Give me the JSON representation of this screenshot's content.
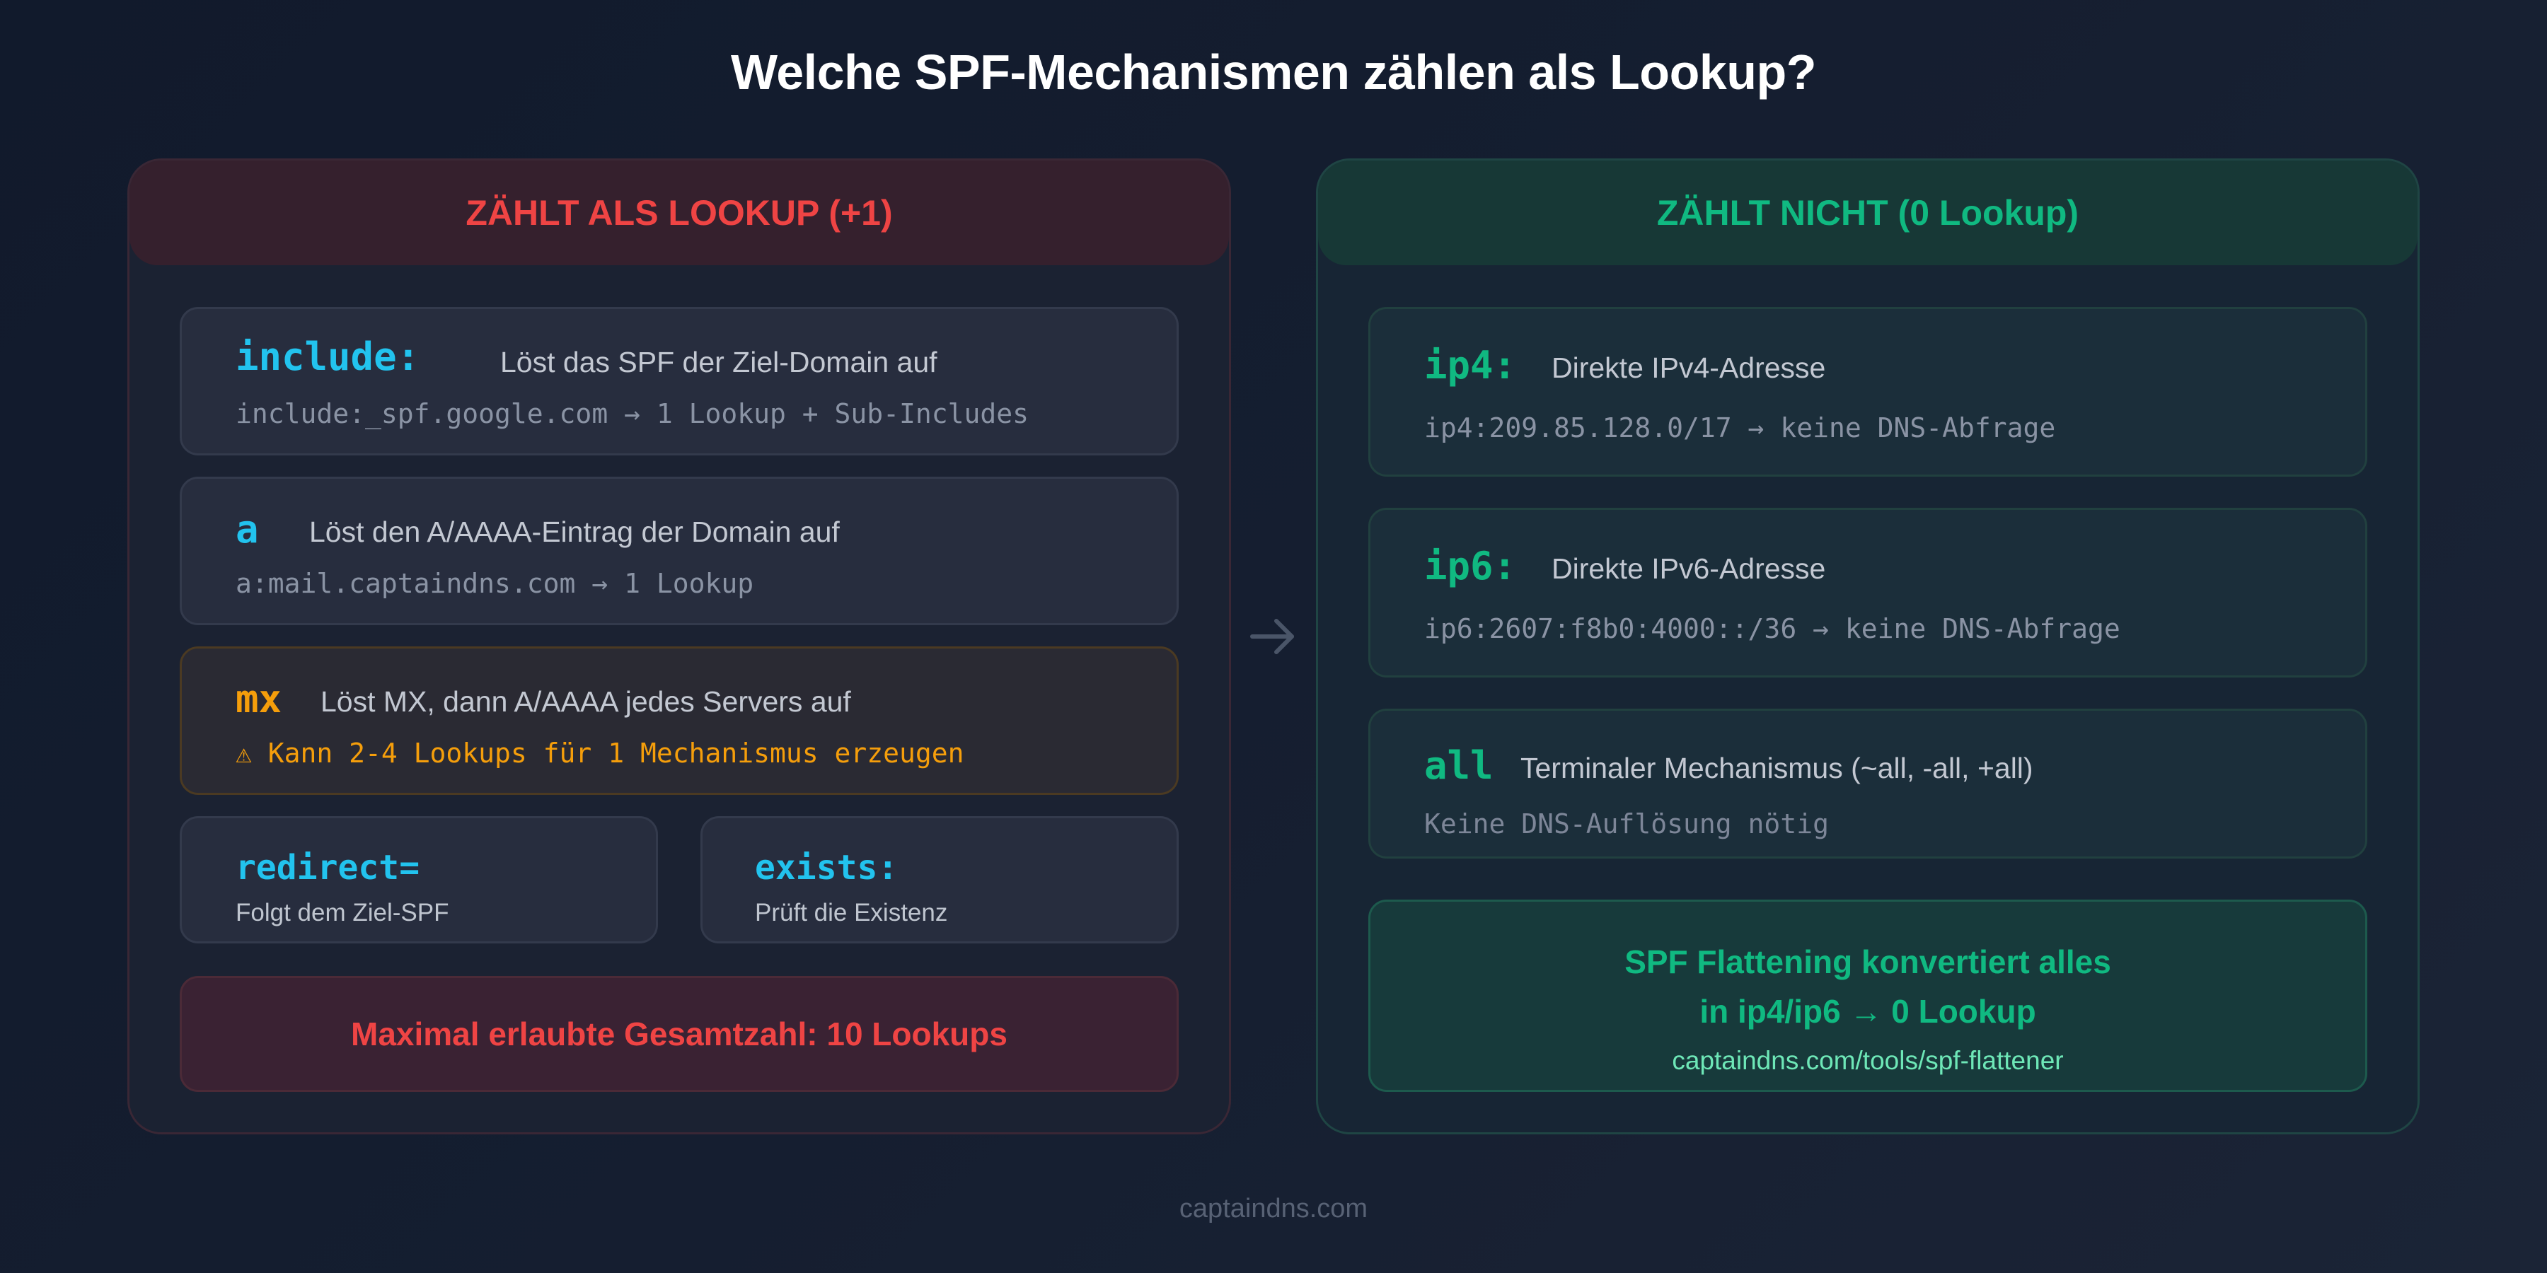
{
  "title": "Welche SPF-Mechanismen zählen als Lookup?",
  "left_panel": {
    "header": "ZÄHLT ALS LOOKUP (+1)",
    "cards": [
      {
        "keyword": "include:",
        "description": "Löst das SPF der Ziel-Domain auf",
        "example": "include:_spf.google.com → 1 Lookup + Sub-Includes"
      },
      {
        "keyword": "a",
        "description": "Löst den A/AAAA-Eintrag der Domain auf",
        "example": "a:mail.captaindns.com → 1 Lookup"
      },
      {
        "keyword": "mx",
        "description": "Löst MX, dann A/AAAA jedes Servers auf",
        "example": "⚠ Kann 2-4 Lookups für 1 Mechanismus erzeugen"
      }
    ],
    "small_cards": [
      {
        "keyword": "redirect=",
        "description": "Folgt dem Ziel-SPF"
      },
      {
        "keyword": "exists:",
        "description": "Prüft die Existenz"
      }
    ],
    "total": "Maximal erlaubte Gesamtzahl: 10 Lookups"
  },
  "right_panel": {
    "header": "ZÄHLT NICHT (0 Lookup)",
    "cards": [
      {
        "keyword": "ip4:",
        "description": "Direkte IPv4-Adresse",
        "example": "ip4:209.85.128.0/17 → keine DNS-Abfrage"
      },
      {
        "keyword": "ip6:",
        "description": "Direkte IPv6-Adresse",
        "example": "ip6:2607:f8b0:4000::/36 → keine DNS-Abfrage"
      },
      {
        "keyword": "all",
        "description": "Terminaler Mechanismus (~all, -all, +all)",
        "example": "Keine DNS-Auflösung nötig"
      }
    ],
    "flattening": {
      "line1": "SPF Flattening konvertiert alles",
      "line2": "in ip4/ip6 → 0 Lookup",
      "link": "captaindns.com/tools/spf-flattener"
    }
  },
  "footer": "captaindns.com",
  "icons": {
    "arrow": "arrow-right-icon"
  },
  "colors": {
    "red": "#ef4444",
    "green": "#10b981",
    "cyan": "#22c3ee",
    "orange": "#f59e0b"
  }
}
